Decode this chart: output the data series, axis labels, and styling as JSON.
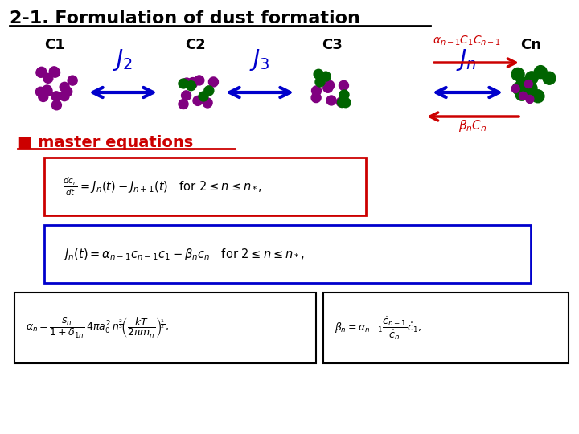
{
  "title": "2-1. Formulation of dust formation",
  "bg_color": "#ffffff",
  "title_color": "#000000",
  "purple": "#800080",
  "green": "#006400",
  "blue_arrow": "#0000CC",
  "red_arrow": "#CC0000",
  "red_box": "#CC0000",
  "blue_box": "#0000CC",
  "black_box": "#000000",
  "label_c1": "C1",
  "label_c2": "C2",
  "label_c3": "C3",
  "label_cn": "Cn",
  "master_label": "■ master equations",
  "alpha_label": "\\u03b1n-1C1Cn-1",
  "beta_label": "\\u03b2nCn"
}
